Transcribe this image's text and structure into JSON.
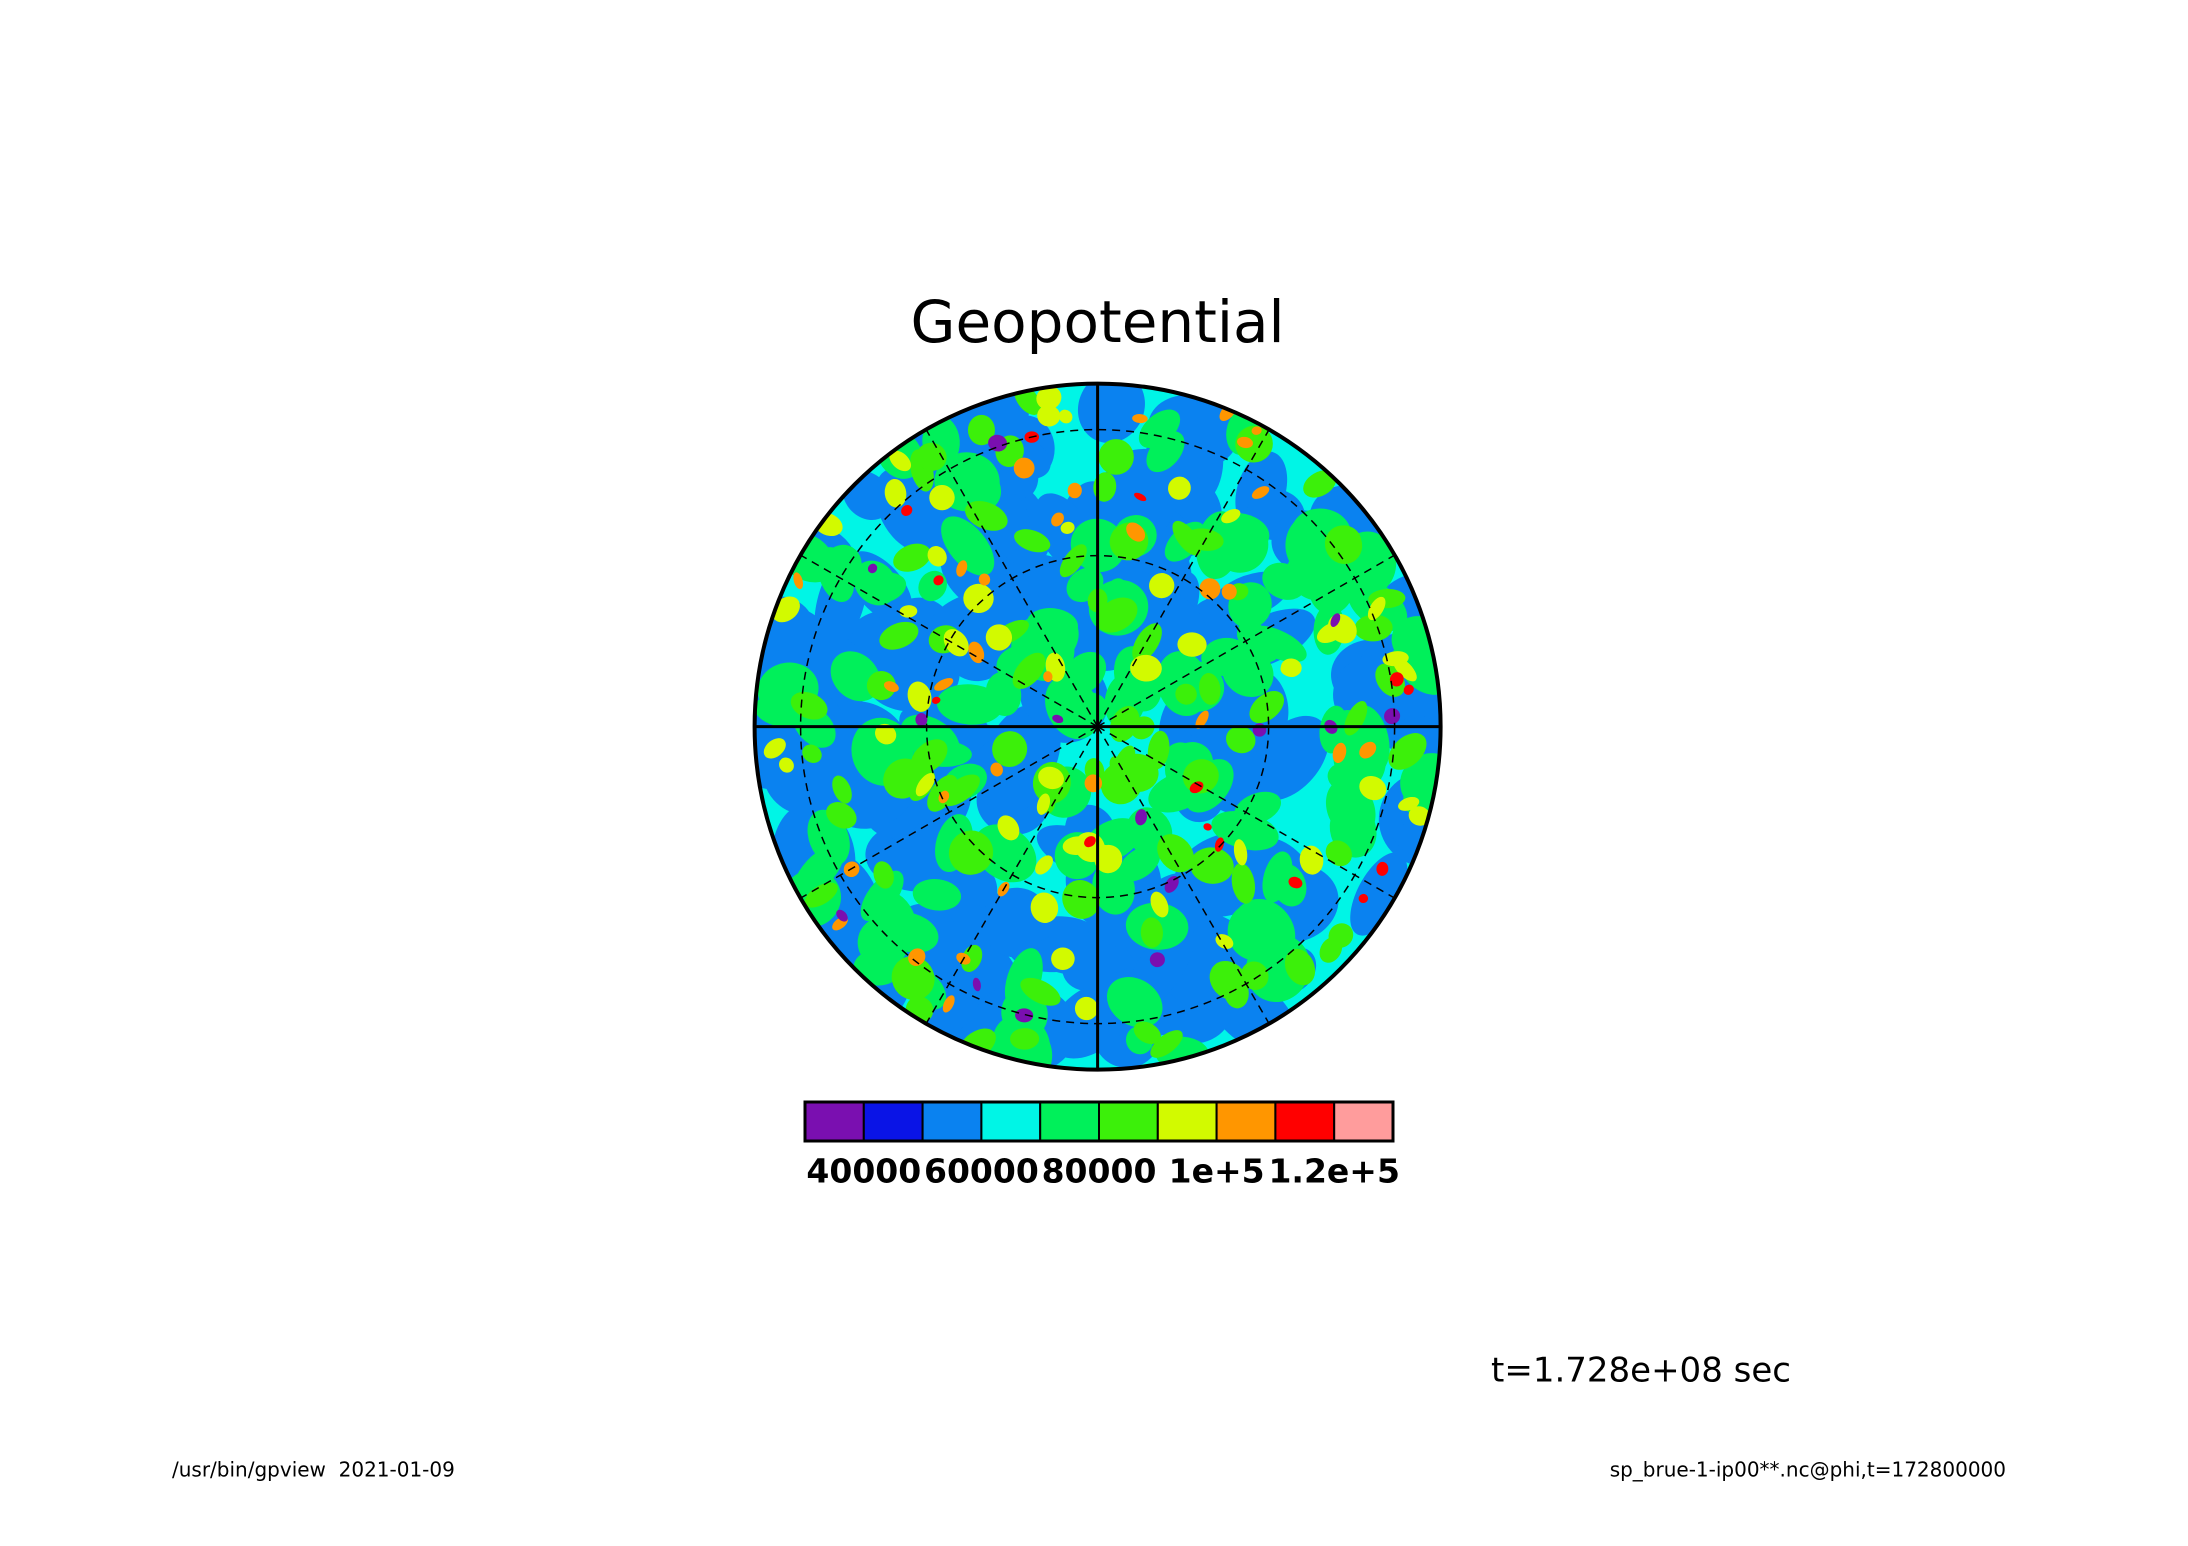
{
  "chart_data": {
    "type": "polar-contour",
    "title": "Geopotential",
    "colorbar": {
      "levels": [
        30000,
        40000,
        50000,
        60000,
        70000,
        80000,
        90000,
        100000,
        110000,
        120000,
        130000
      ],
      "colors": [
        "#7a0fb0",
        "#0a14e6",
        "#0a82f0",
        "#00f5e6",
        "#00f05a",
        "#3cf00a",
        "#d2fa00",
        "#ff9600",
        "#ff0000",
        "#ff9c9c"
      ],
      "lim": [
        30000,
        130000
      ],
      "ticks": [
        40000,
        60000,
        80000,
        {
          "value": 100000,
          "label": "1e+5"
        },
        {
          "value": 120000,
          "label": "1.2e+5"
        }
      ]
    },
    "annotation": "t=1.728e+08 sec",
    "footer_left": "/usr/bin/gpview  2021-01-09",
    "footer_right": "sp_brue-1-ip00**.nc@phi,t=172800000"
  }
}
